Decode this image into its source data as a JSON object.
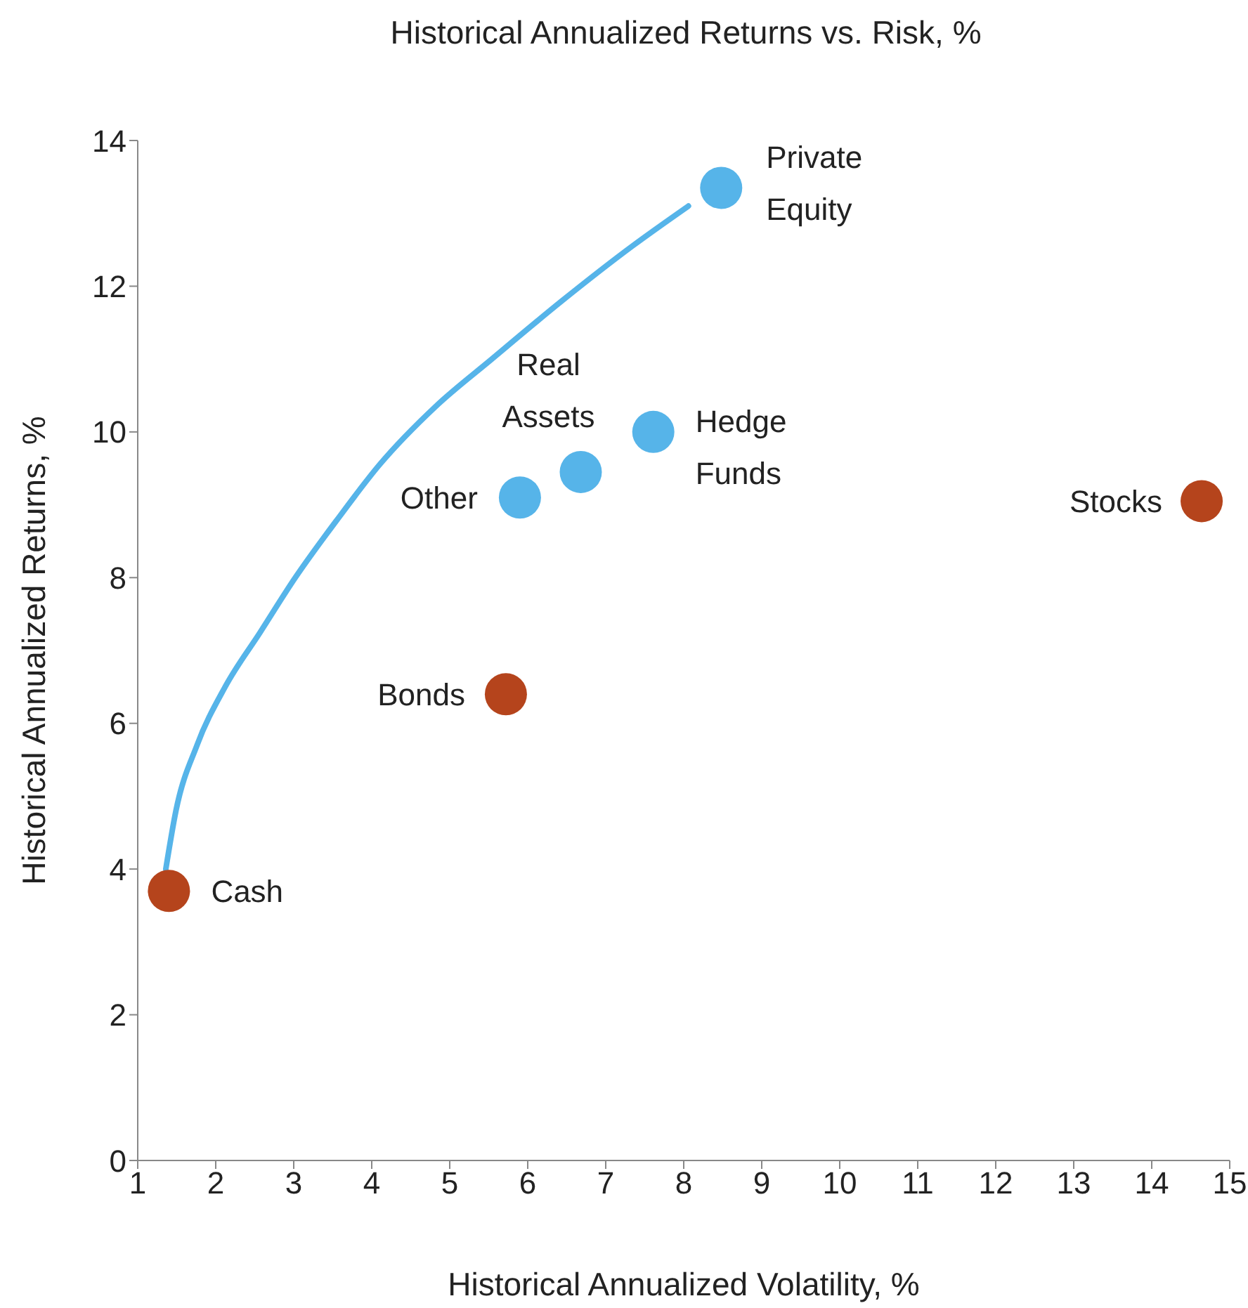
{
  "chart_data": {
    "type": "scatter",
    "title": "Historical Annualized Returns vs. Risk, %",
    "xlabel": "Historical Annualized Volatility, %",
    "ylabel": "Historical Annualized Returns, %",
    "series": [
      {
        "type": "line",
        "marker": "none",
        "color": "#56b4e9",
        "x": [
          1.36,
          1.49,
          1.76,
          2.12,
          2.57,
          3.02,
          3.56,
          4.1,
          4.82,
          5.54,
          6.44,
          7.34,
          8.06
        ],
        "values": [
          4.0,
          4.8,
          5.7,
          6.5,
          7.25,
          8.0,
          8.8,
          9.55,
          10.35,
          11.0,
          11.8,
          12.55,
          13.1
        ]
      },
      {
        "color": "#56b4e9",
        "x": [
          8.48,
          6.68,
          7.61,
          5.9
        ],
        "values": [
          13.35,
          9.45,
          10.0,
          9.1
        ]
      },
      {
        "color": "#b5441c",
        "x": [
          14.64,
          5.72,
          1.4
        ],
        "values": [
          9.05,
          6.4,
          3.7
        ]
      }
    ],
    "annotations": [
      {
        "text": "Private Equity",
        "x": 8.48,
        "y": 13.35
      },
      {
        "text": "Real Assets",
        "x": 6.68,
        "y": 9.45
      },
      {
        "text": "Hedge Funds",
        "x": 7.61,
        "y": 10.0
      },
      {
        "text": "Other",
        "x": 5.9,
        "y": 9.1
      },
      {
        "text": "Stocks",
        "x": 14.64,
        "y": 9.05
      },
      {
        "text": "Bonds",
        "x": 5.72,
        "y": 6.4
      },
      {
        "text": "Cash",
        "x": 1.4,
        "y": 3.7
      }
    ],
    "xlim": [
      1,
      15
    ],
    "xticks": [
      1,
      2,
      3,
      4,
      5,
      6,
      7,
      8,
      9,
      10,
      11,
      12,
      13,
      14,
      15
    ],
    "ylim": [
      0,
      14
    ],
    "yticks": [
      0,
      2,
      4,
      6,
      8,
      10,
      12,
      14
    ],
    "grid": false,
    "legend": false,
    "marker": "circle",
    "line_style": "solid"
  }
}
